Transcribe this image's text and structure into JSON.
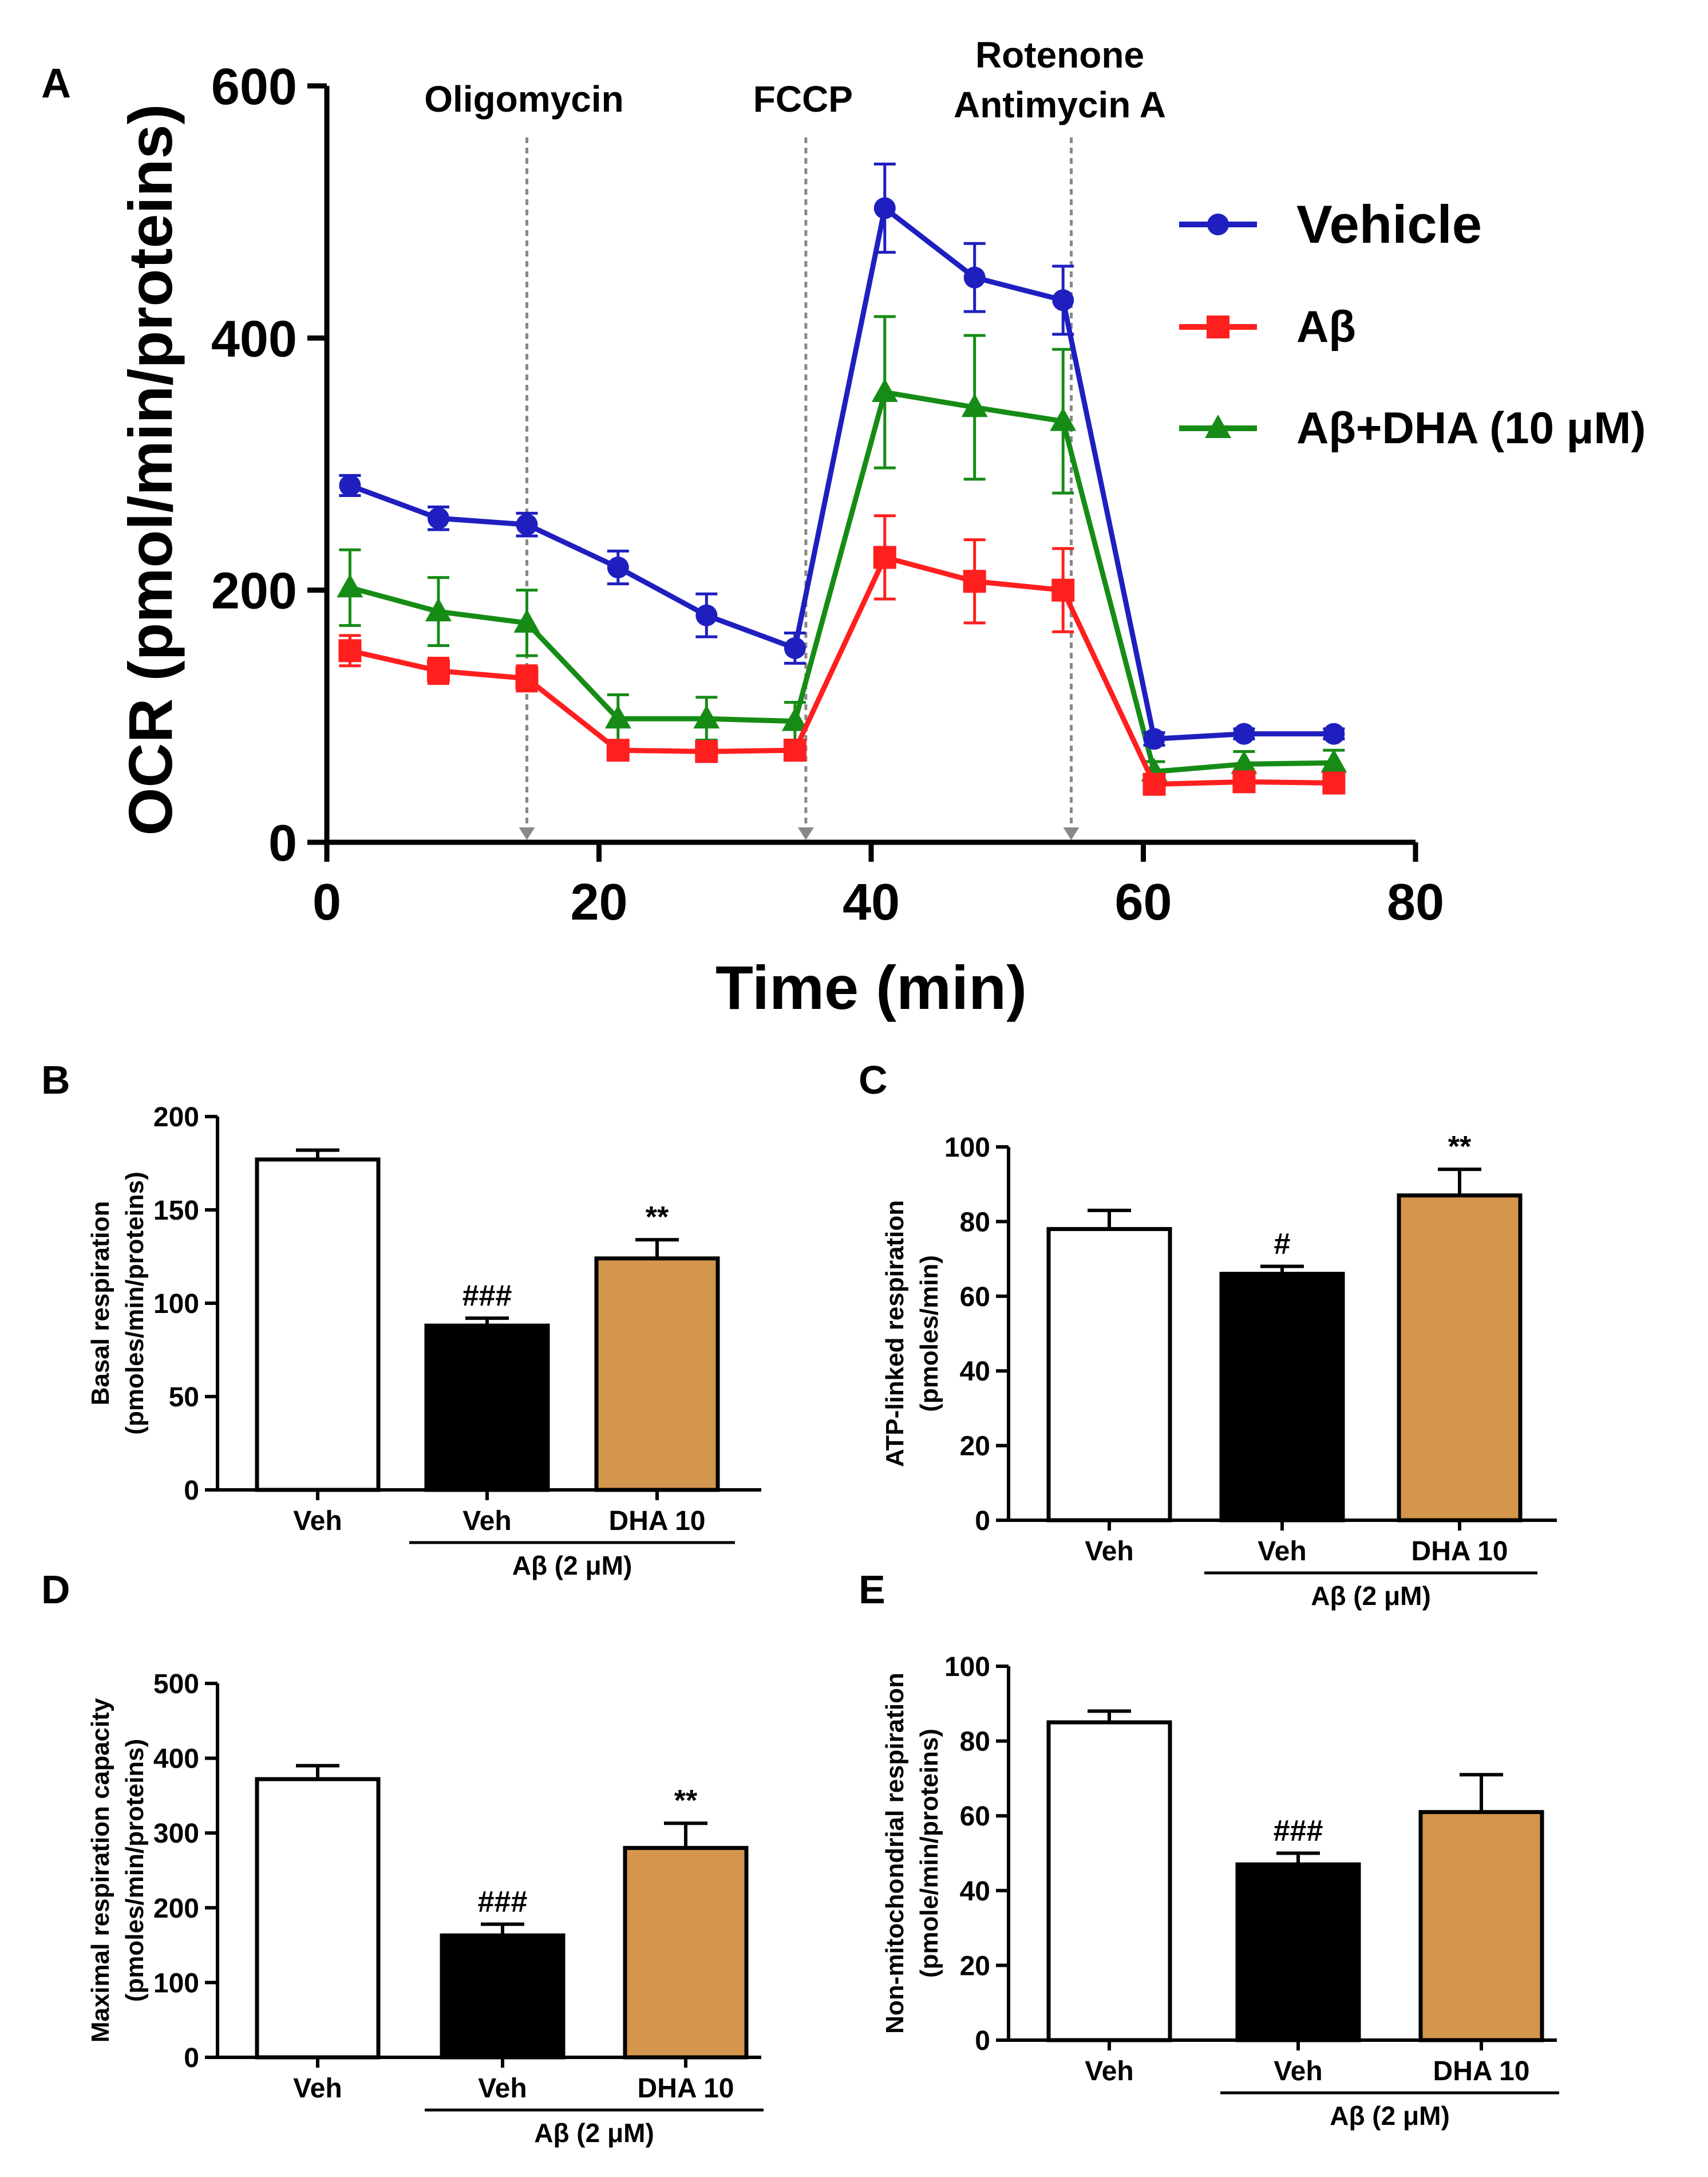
{
  "chart_data": [
    {
      "panel": "A",
      "type": "line",
      "title": "",
      "xlabel": "Time (min)",
      "ylabel": "OCR (pmol/min/proteins)",
      "xlim": [
        0,
        80
      ],
      "ylim": [
        0,
        600
      ],
      "xticks": [
        "0",
        "20",
        "40",
        "60",
        "80"
      ],
      "yticks": [
        "0",
        "200",
        "400",
        "600"
      ],
      "x": [
        1.7,
        8.2,
        14.7,
        21.4,
        27.9,
        34.4,
        41.0,
        47.6,
        54.1,
        60.8,
        67.4,
        74.0
      ],
      "injections": [
        {
          "label": "Oligomycin",
          "x": 14.7
        },
        {
          "label": "FCCP",
          "x": 35.2
        },
        {
          "label": "Rotenone",
          "label2": "Antimycin A",
          "x": 54.7
        }
      ],
      "legend_position": "right",
      "series": [
        {
          "name": "Vehicle",
          "color": "#1f1fc0",
          "marker": "circle",
          "values": [
            283,
            257,
            252,
            218,
            180,
            154,
            503,
            448,
            430,
            82,
            86,
            86
          ],
          "errors": [
            8,
            9,
            9,
            13,
            17,
            12,
            35,
            27,
            27,
            5,
            4,
            4
          ]
        },
        {
          "name": "Aβ",
          "color": "#ff1f1f",
          "marker": "square",
          "values": [
            152,
            136,
            130,
            73,
            72,
            73,
            226,
            207,
            200,
            46,
            48,
            47
          ],
          "errors": [
            12,
            10,
            10,
            5,
            5,
            5,
            33,
            33,
            33,
            4,
            4,
            4
          ]
        },
        {
          "name": "Aβ+DHA (10 μM)",
          "color": "#168c16",
          "marker": "triangle",
          "values": [
            202,
            183,
            174,
            98,
            98,
            96,
            357,
            345,
            334,
            56,
            62,
            63
          ],
          "errors": [
            30,
            27,
            26,
            19,
            17,
            15,
            60,
            57,
            57,
            8,
            10,
            10
          ]
        }
      ]
    },
    {
      "panel": "B",
      "type": "bar",
      "ylabel": "Basal respiration",
      "ylabel2": "(pmoles/min/proteins)",
      "ylim": [
        0,
        200
      ],
      "yticks": [
        "0",
        "50",
        "100",
        "150",
        "200"
      ],
      "categories": [
        "Veh",
        "Veh",
        "DHA 10"
      ],
      "group_label": "Aβ (2 μM)",
      "values": [
        177,
        88,
        124
      ],
      "errors": [
        5,
        4,
        10
      ],
      "colors": [
        "#ffffff",
        "#000000",
        "#d4964c"
      ],
      "annotations": [
        "",
        "###",
        "**"
      ]
    },
    {
      "panel": "C",
      "type": "bar",
      "ylabel": "ATP-linked respiration",
      "ylabel2": "(pmoles/min)",
      "ylim": [
        0,
        100
      ],
      "yticks": [
        "0",
        "20",
        "40",
        "60",
        "80",
        "100"
      ],
      "categories": [
        "Veh",
        "Veh",
        "DHA 10"
      ],
      "group_label": "Aβ (2 μM)",
      "values": [
        78,
        66,
        87
      ],
      "errors": [
        5,
        2,
        7
      ],
      "colors": [
        "#ffffff",
        "#000000",
        "#d4964c"
      ],
      "annotations": [
        "",
        "#",
        "**"
      ]
    },
    {
      "panel": "D",
      "type": "bar",
      "ylabel": "Maximal respiration capacity",
      "ylabel2": "(pmoles/min/proteins)",
      "ylim": [
        0,
        500
      ],
      "yticks": [
        "0",
        "100",
        "200",
        "300",
        "400",
        "500"
      ],
      "categories": [
        "Veh",
        "Veh",
        "DHA 10"
      ],
      "group_label": "Aβ (2 μM)",
      "values": [
        372,
        163,
        280
      ],
      "errors": [
        18,
        15,
        33
      ],
      "colors": [
        "#ffffff",
        "#000000",
        "#d4964c"
      ],
      "annotations": [
        "",
        "###",
        "**"
      ]
    },
    {
      "panel": "E",
      "type": "bar",
      "ylabel": "Non-mitochondrial respiration",
      "ylabel2": "(pmole/min/proteins)",
      "ylim": [
        0,
        100
      ],
      "yticks": [
        "0",
        "20",
        "40",
        "60",
        "80",
        "100"
      ],
      "categories": [
        "Veh",
        "Veh",
        "DHA 10"
      ],
      "group_label": "Aβ (2 μM)",
      "values": [
        85,
        47,
        61
      ],
      "errors": [
        3,
        3,
        10
      ],
      "colors": [
        "#ffffff",
        "#000000",
        "#d4964c"
      ],
      "annotations": [
        "",
        "###",
        ""
      ]
    }
  ]
}
